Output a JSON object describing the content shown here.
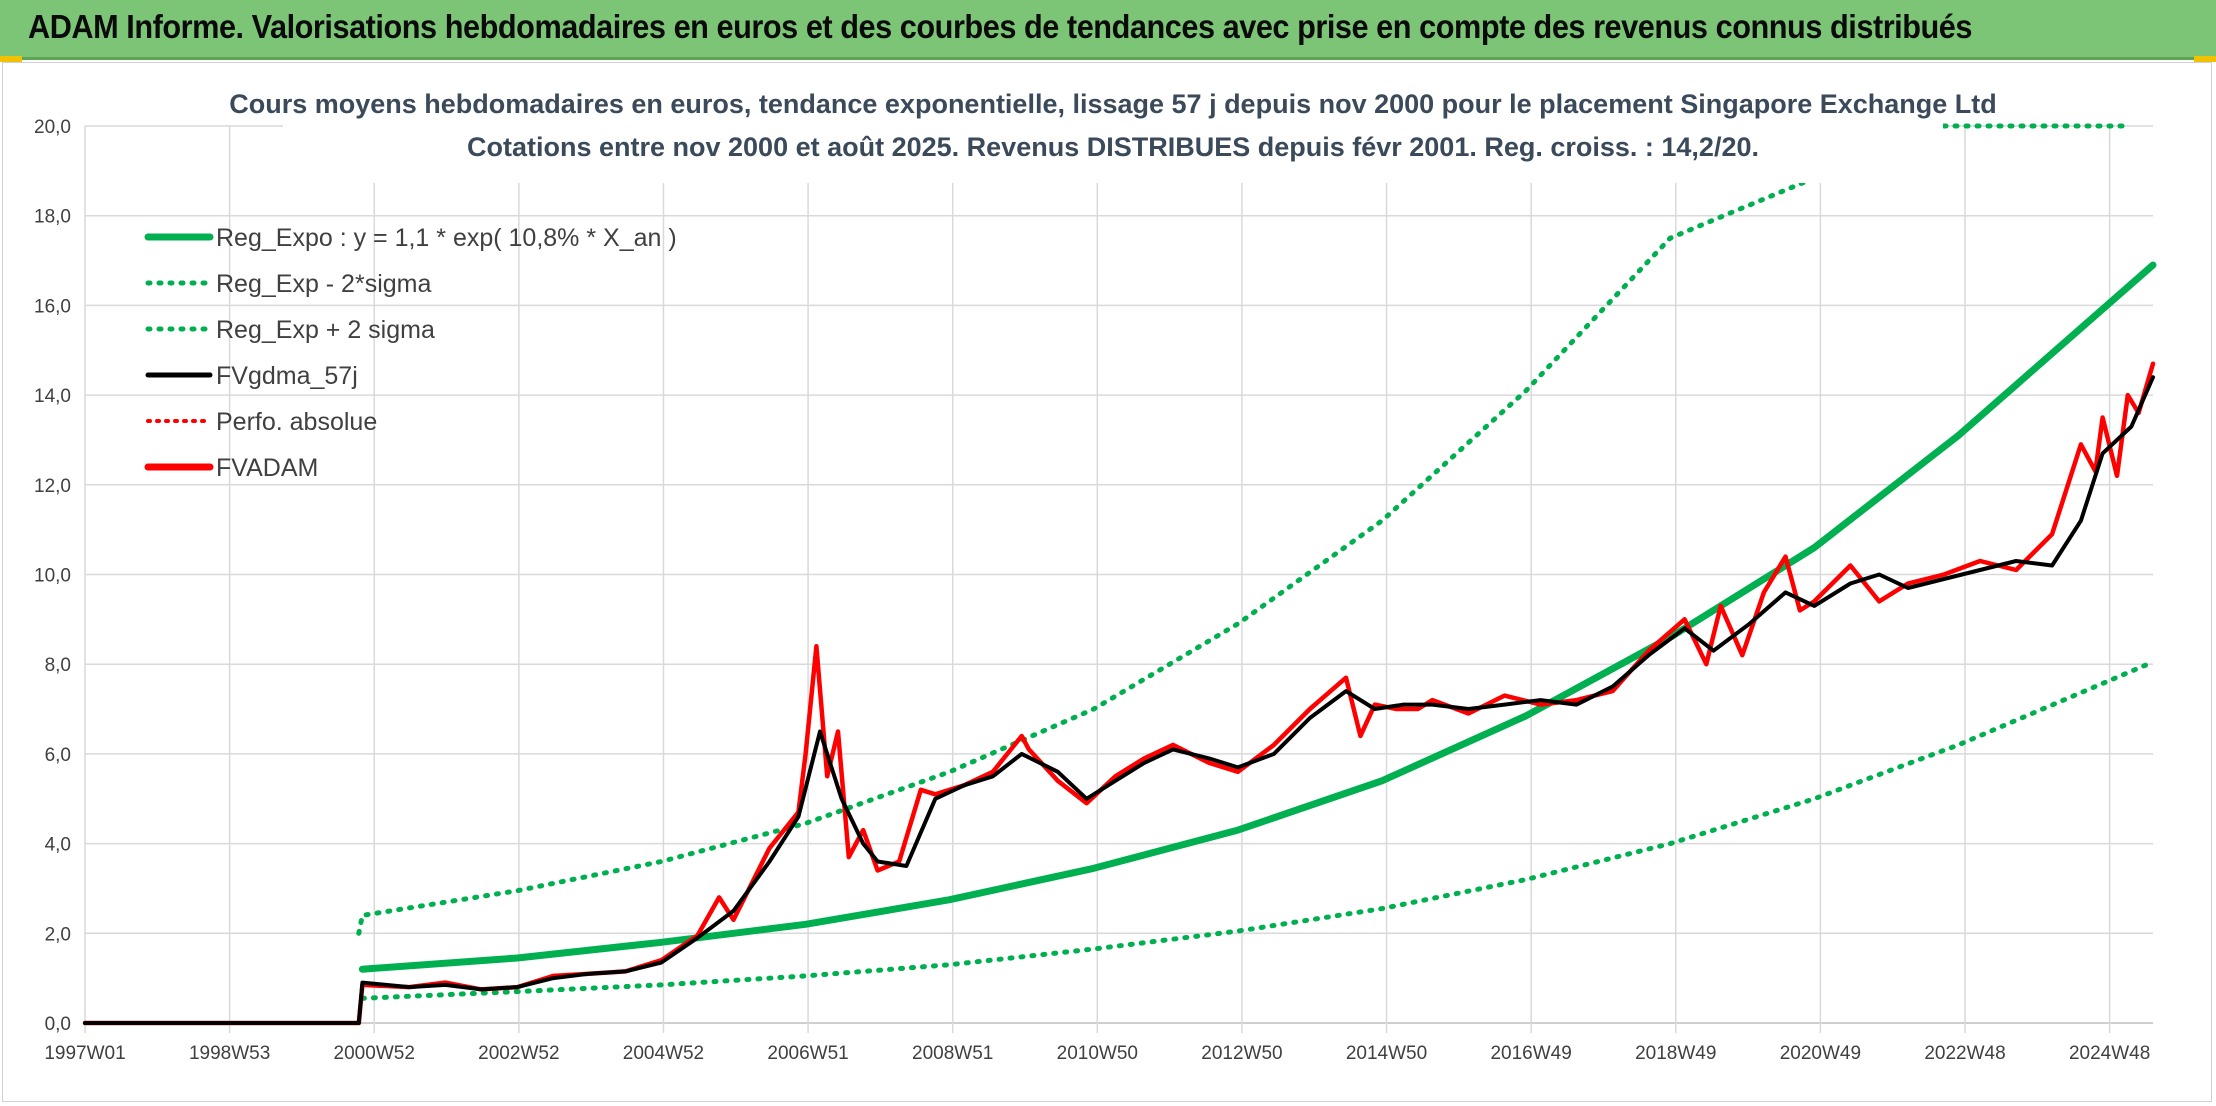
{
  "header": {
    "title": "ADAM Informe. Valorisations hebdomadaires en euros et des courbes de tendances avec prise en compte des revenus connus distribués"
  },
  "colors": {
    "header_bg": "#7cc576",
    "reg_expo": "#00b050",
    "fvgdma": "#000000",
    "fvadam": "#ff0000",
    "grid": "#d9d9d9"
  },
  "chart_data": {
    "type": "line",
    "title": "Cours moyens hebdomadaires en euros, tendance exponentielle, lissage 57 j depuis nov 2000 pour le placement Singapore Exchange Ltd",
    "subtitle": "Cotations entre nov 2000 et août 2025. Revenus DISTRIBUES depuis févr 2001. Reg. croiss. : 14,2/20.",
    "xlabel": "",
    "ylabel": "",
    "ylim": [
      0,
      20
    ],
    "y_ticks": [
      "0,0",
      "2,0",
      "4,0",
      "6,0",
      "8,0",
      "10,0",
      "12,0",
      "14,0",
      "16,0",
      "18,0",
      "20,0"
    ],
    "x_ticks": [
      "1997W01",
      "1998W53",
      "2000W52",
      "2002W52",
      "2004W52",
      "2006W51",
      "2008W51",
      "2010W50",
      "2012W50",
      "2014W50",
      "2016W49",
      "2018W49",
      "2020W49",
      "2022W48",
      "2024W48"
    ],
    "x_range_years": [
      1997.0,
      2025.7
    ],
    "grid": true,
    "legend_position": "top-left",
    "legend": [
      {
        "label": "Reg_Expo : y = 1,1 * exp( 10,8% *  X_an )",
        "style": "solid",
        "color": "#00b050"
      },
      {
        "label": "Reg_Exp - 2*sigma",
        "style": "dotted",
        "color": "#00b050"
      },
      {
        "label": "Reg_Exp + 2 sigma",
        "style": "dotted",
        "color": "#00b050"
      },
      {
        "label": "FVgdma_57j",
        "style": "solid",
        "color": "#000000"
      },
      {
        "label": "Perfo. absolue",
        "style": "dotted",
        "color": "#ff0000"
      },
      {
        "label": "FVADAM",
        "style": "solid",
        "color": "#ff0000"
      }
    ],
    "series": [
      {
        "name": "Reg_Expo : y = 1,1 * exp( 10,8% *  X_an )",
        "x": [
          2000.85,
          2003,
          2005,
          2007,
          2009,
          2011,
          2013,
          2015,
          2017,
          2019,
          2021,
          2023,
          2025.7
        ],
        "values": [
          1.2,
          1.45,
          1.8,
          2.2,
          2.75,
          3.45,
          4.3,
          5.4,
          6.85,
          8.6,
          10.6,
          13.1,
          16.9
        ]
      },
      {
        "name": "Reg_Exp - 2*sigma",
        "x": [
          2000.85,
          2003,
          2005,
          2007,
          2009,
          2011,
          2013,
          2015,
          2017,
          2019,
          2021,
          2023,
          2025.7
        ],
        "values": [
          0.55,
          0.7,
          0.85,
          1.05,
          1.3,
          1.65,
          2.05,
          2.55,
          3.2,
          4.0,
          5.0,
          6.2,
          8.05
        ]
      },
      {
        "name": "Reg_Exp + 2 sigma",
        "x": [
          2000.8,
          2000.85,
          2003,
          2005,
          2007,
          2009,
          2011,
          2013,
          2015,
          2017,
          2019,
          2020.94
        ],
        "values": [
          2.0,
          2.4,
          2.95,
          3.6,
          4.45,
          5.6,
          7.0,
          8.9,
          11.2,
          14.1,
          17.5,
          18.8
        ]
      },
      {
        "name": "FVgdma_57j",
        "x": [
          1997.0,
          2000.8,
          2000.85,
          2001.5,
          2002.0,
          2002.5,
          2003.0,
          2003.5,
          2004.0,
          2004.5,
          2005.0,
          2005.5,
          2006.0,
          2006.5,
          2006.9,
          2007.2,
          2007.5,
          2007.8,
          2008.0,
          2008.4,
          2008.8,
          2009.2,
          2009.6,
          2010.0,
          2010.5,
          2010.9,
          2011.3,
          2011.7,
          2012.1,
          2012.6,
          2013.0,
          2013.5,
          2014.0,
          2014.5,
          2014.9,
          2015.3,
          2015.7,
          2016.2,
          2016.7,
          2017.2,
          2017.7,
          2018.2,
          2018.7,
          2019.2,
          2019.6,
          2020.1,
          2020.6,
          2021.0,
          2021.5,
          2021.9,
          2022.3,
          2022.8,
          2023.3,
          2023.8,
          2024.3,
          2024.7,
          2025.0,
          2025.4,
          2025.7
        ],
        "values": [
          0.0,
          0.0,
          0.9,
          0.8,
          0.85,
          0.75,
          0.8,
          1.0,
          1.1,
          1.15,
          1.35,
          1.9,
          2.5,
          3.6,
          4.6,
          6.5,
          5.0,
          4.0,
          3.6,
          3.5,
          5.0,
          5.3,
          5.5,
          6.0,
          5.6,
          5.0,
          5.4,
          5.8,
          6.1,
          5.9,
          5.7,
          6.0,
          6.8,
          7.4,
          7.0,
          7.1,
          7.1,
          7.0,
          7.1,
          7.2,
          7.1,
          7.5,
          8.2,
          8.8,
          8.3,
          8.9,
          9.6,
          9.3,
          9.8,
          10.0,
          9.7,
          9.9,
          10.1,
          10.3,
          10.2,
          11.2,
          12.7,
          13.3,
          14.4
        ]
      },
      {
        "name": "FVADAM",
        "x": [
          1997.0,
          2000.8,
          2000.85,
          2001.5,
          2002.0,
          2002.5,
          2003.0,
          2003.5,
          2004.0,
          2004.5,
          2005.0,
          2005.5,
          2005.8,
          2006.0,
          2006.5,
          2006.9,
          2007.0,
          2007.15,
          2007.3,
          2007.45,
          2007.6,
          2007.8,
          2008.0,
          2008.3,
          2008.6,
          2008.8,
          2009.2,
          2009.6,
          2010.0,
          2010.1,
          2010.5,
          2010.9,
          2011.3,
          2011.7,
          2012.1,
          2012.6,
          2013.0,
          2013.5,
          2014.0,
          2014.5,
          2014.7,
          2014.9,
          2015.2,
          2015.5,
          2015.7,
          2016.2,
          2016.7,
          2017.2,
          2017.7,
          2018.2,
          2018.7,
          2019.2,
          2019.5,
          2019.7,
          2020.0,
          2020.3,
          2020.6,
          2020.8,
          2021.0,
          2021.5,
          2021.9,
          2022.3,
          2022.8,
          2023.3,
          2023.8,
          2024.3,
          2024.7,
          2024.9,
          2025.0,
          2025.2,
          2025.35,
          2025.5,
          2025.7
        ],
        "values": [
          0.0,
          0.0,
          0.85,
          0.8,
          0.9,
          0.75,
          0.8,
          1.05,
          1.1,
          1.15,
          1.4,
          1.95,
          2.8,
          2.3,
          3.9,
          4.7,
          6.0,
          8.4,
          5.5,
          6.5,
          3.7,
          4.3,
          3.4,
          3.6,
          5.2,
          5.1,
          5.3,
          5.6,
          6.4,
          6.1,
          5.4,
          4.9,
          5.5,
          5.9,
          6.2,
          5.8,
          5.6,
          6.2,
          7.0,
          7.7,
          6.4,
          7.1,
          7.0,
          7.0,
          7.2,
          6.9,
          7.3,
          7.1,
          7.2,
          7.4,
          8.3,
          9.0,
          8.0,
          9.3,
          8.2,
          9.6,
          10.4,
          9.2,
          9.4,
          10.2,
          9.4,
          9.8,
          10.0,
          10.3,
          10.1,
          10.9,
          12.9,
          12.3,
          13.5,
          12.2,
          14.0,
          13.6,
          14.7
        ]
      }
    ]
  }
}
